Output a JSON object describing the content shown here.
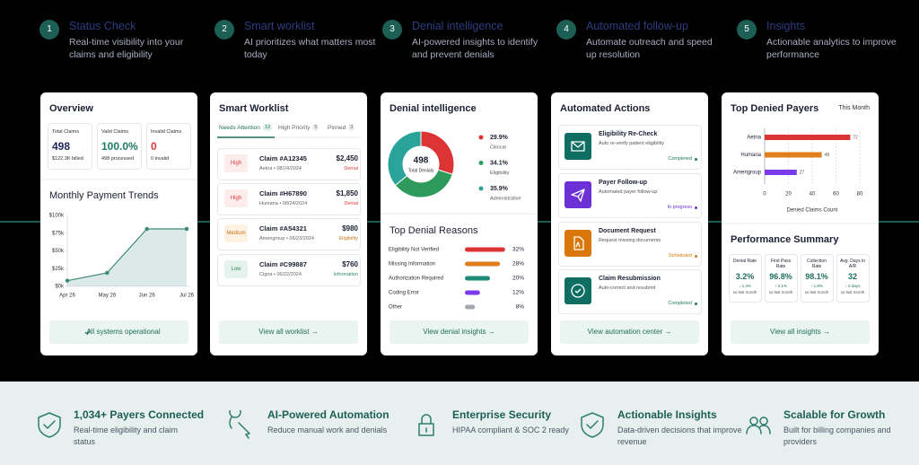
{
  "steps": [
    {
      "number": "1",
      "title": "Status Check",
      "description": "Real-time visibility into your claims and eligibility"
    },
    {
      "number": "2",
      "title": "Smart worklist",
      "description": "AI prioritizes what matters most today"
    },
    {
      "number": "3",
      "title": "Denial intelligence",
      "description": "AI-powered insights to identify and prevent denials"
    },
    {
      "number": "4",
      "title": "Automated follow-up",
      "description": "Automate outreach and speed up resolution"
    },
    {
      "number": "5",
      "title": "Insights",
      "description": "Actionable analytics to improve performance"
    }
  ],
  "overview": {
    "title": "Overview",
    "stats": [
      {
        "label": "Total Claims",
        "value": "498",
        "sub": "$122.3K billed",
        "color": "#1b2559"
      },
      {
        "label": "Valid Claims",
        "value": "100.0%",
        "sub": "498 processed",
        "color": "#1f7a63"
      },
      {
        "label": "Invalid Claims",
        "value": "0",
        "sub": "0 invalid",
        "color": "#d93a3a"
      }
    ],
    "button": "All systems operational"
  },
  "worklist": {
    "title": "Smart Worklist",
    "tabs": [
      {
        "label": "Needs Attention",
        "count": "12"
      },
      {
        "label": "High Priority",
        "count": "5"
      },
      {
        "label": "Pinned",
        "count": "3"
      }
    ],
    "items": [
      {
        "priority": "High",
        "claim": "Claim #A12345",
        "meta": "Aetna • 08/24/2024",
        "amount": "$2,450",
        "status": "Denial",
        "color": "#d93a3a",
        "bg": "#fdecec"
      },
      {
        "priority": "High",
        "claim": "Claim #H67890",
        "meta": "Humana • 08/24/2024",
        "amount": "$1,850",
        "status": "Denial",
        "color": "#d93a3a",
        "bg": "#fdecec"
      },
      {
        "priority": "Medium",
        "claim": "Claim #A54321",
        "meta": "Amerigroup • 06/23/2024",
        "amount": "$980",
        "status": "Eligibility",
        "color": "#c7771a",
        "bg": "#fdf1e2"
      },
      {
        "priority": "Low",
        "claim": "Claim #C99887",
        "meta": "Cigna • 06/22/2024",
        "amount": "$760",
        "status": "Information",
        "color": "#2e8a62",
        "bg": "#e6f3ec"
      }
    ],
    "button": "View all worklist →"
  },
  "denial": {
    "title": "Denial intelligence",
    "button": "View denial insights →"
  },
  "automation": {
    "title": "Automated Actions",
    "items": [
      {
        "title": "Eligibility Re-Check",
        "description": "Auto re-verify patient eligibility",
        "status": "Completed",
        "color": "#0f6e62",
        "status_color": "#1f7a63"
      },
      {
        "title": "Payer Follow-up",
        "description": "Automated payer follow-up",
        "status": "In progress",
        "color": "#6d2fd6",
        "status_color": "#6d2fd6"
      },
      {
        "title": "Document Request",
        "description": "Request missing documents",
        "status": "Scheduled",
        "color": "#d9770a",
        "status_color": "#d9770a"
      },
      {
        "title": "Claim Resubmission",
        "description": "Auto-correct and resubmit",
        "status": "Completed",
        "color": "#0f6e62",
        "status_color": "#1f7a63"
      }
    ],
    "button": "View automation center →"
  },
  "insights": {
    "performance_title": "Performance Summary",
    "metrics": [
      {
        "label": "Denial Rate",
        "value": "3.2%",
        "change": "↓ 1.4%",
        "note": "vs last month"
      },
      {
        "label": "First Pass Rate",
        "value": "96.8%",
        "change": "↑ 2.1%",
        "note": "vs last month"
      },
      {
        "label": "Collection Rate",
        "value": "98.1%",
        "change": "↑ 1.8%",
        "note": "vs last month"
      },
      {
        "label": "Avg. Days in A/R",
        "value": "32",
        "change": "↓ 5 days",
        "note": "vs last month"
      }
    ],
    "button": "View all insights →"
  },
  "features": [
    {
      "title": "1,034+ Payers Connected",
      "description": "Real-time eligibility and claim status"
    },
    {
      "title": "AI-Powered Automation",
      "description": "Reduce manual work and denials"
    },
    {
      "title": "Enterprise Security",
      "description": "HIPAA compliant & SOC 2 ready"
    },
    {
      "title": "Actionable Insights",
      "description": "Data-driven decisions that improve revenue"
    },
    {
      "title": "Scalable for Growth",
      "description": "Built for billing companies and providers"
    }
  ],
  "chart_data": [
    {
      "type": "line",
      "title": "Monthly Payment Trends",
      "categories": [
        "Apr 26",
        "May 26",
        "Jun 26",
        "Jul 26"
      ],
      "values": [
        8,
        19,
        81,
        81
      ],
      "color": "#3d8a78",
      "ylim": [
        0,
        100
      ],
      "yticks": [
        {
          "value": 0,
          "label": "$0k"
        },
        {
          "value": 25,
          "label": "$25k"
        },
        {
          "value": 50,
          "label": "$50k"
        },
        {
          "value": 75,
          "label": "$75k"
        },
        {
          "value": 100,
          "label": "$100k"
        }
      ]
    },
    {
      "type": "donut",
      "center_value": 498,
      "center_label": "Total Denials",
      "categories": [
        "Clinical",
        "Eligibility",
        "Administrative"
      ],
      "values": [
        29.9,
        34.1,
        35.9
      ],
      "value_labels": [
        "29.9%",
        "34.1%",
        "35.9%"
      ],
      "colors": [
        "#dc3434",
        "#2e9a5c",
        "#2aa39a"
      ]
    },
    {
      "type": "hbar",
      "title": "Top Denial Reasons",
      "categories": [
        "Eligibility Not Verified",
        "Missing Information",
        "Authorization Required",
        "Coding Error",
        "Other"
      ],
      "values": [
        32,
        28,
        20,
        12,
        8
      ],
      "value_labels": [
        "32%",
        "28%",
        "20%",
        "12%",
        "8%"
      ],
      "colors": [
        "#dc3434",
        "#e07f1c",
        "#1f8a78",
        "#7c3aed",
        "#a3a7b0"
      ]
    },
    {
      "type": "hbar-axis",
      "title": "Top Denied Payers",
      "period": "This Month",
      "categories": [
        "Aetna",
        "Humana",
        "Amerigroup"
      ],
      "values": [
        72,
        48,
        27
      ],
      "colors": [
        "#dc3434",
        "#e07f1c",
        "#7c3aed"
      ],
      "xlim": [
        0,
        80
      ],
      "xticks": [
        0,
        20,
        40,
        60,
        80
      ],
      "xlabel": "Denied Claims Count"
    }
  ]
}
